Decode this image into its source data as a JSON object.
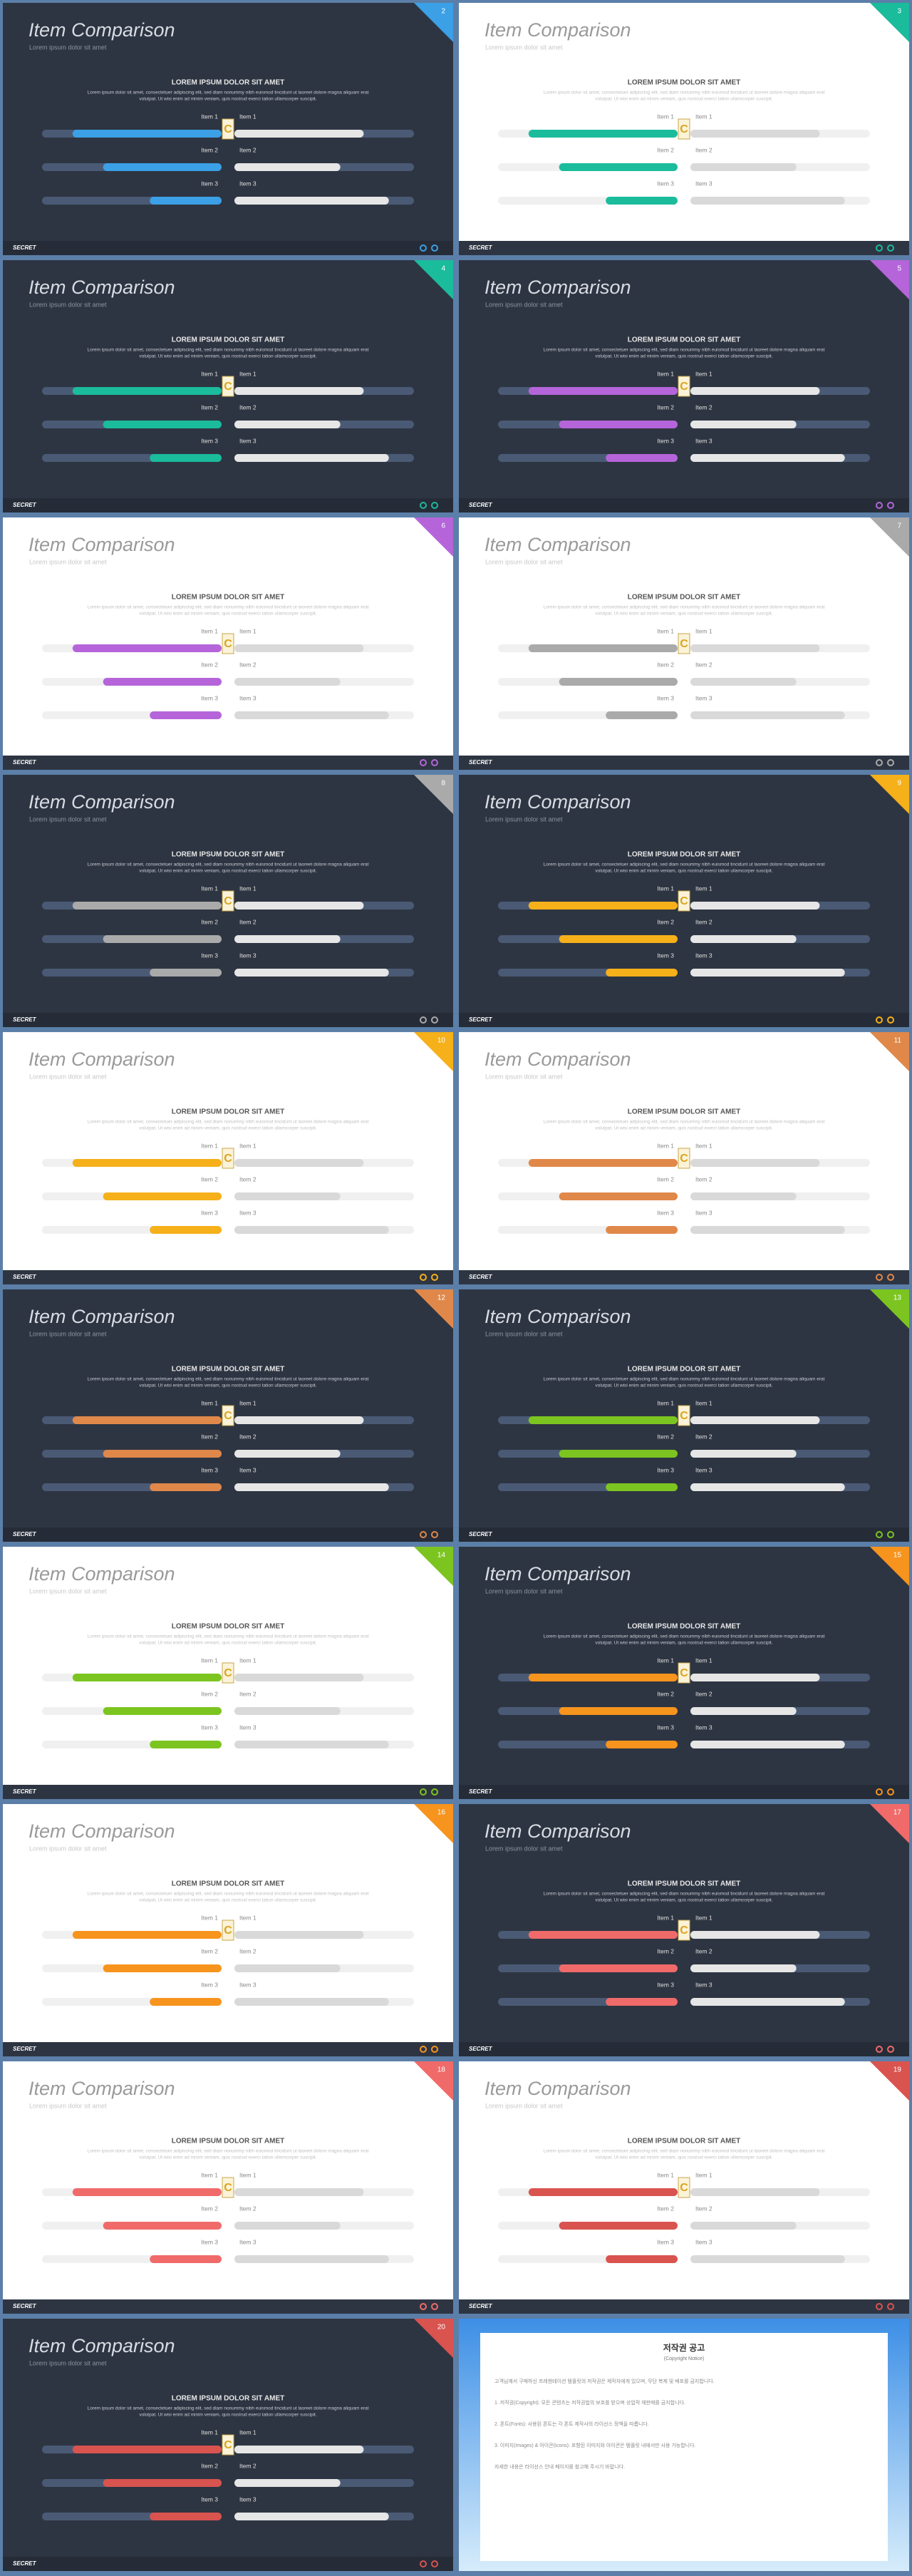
{
  "slide_template": {
    "title": "Item Comparison",
    "subtitle": "Lorem ipsum dolor sit amet",
    "heading": "LOREM IPSUM DOLOR SIT AMET",
    "body": [
      "Lorem ipsum dolor sit amet, consectetuer adipiscing elit, sed diam nonummy nibh euismod tincidunt ut laoreet dolore magna aliquam erat",
      "volutpat. Ut wisi enim ad minim veniam, quis nostrud exerci tation ullamcorper suscipit."
    ],
    "items": [
      "Item 1",
      "Item 2",
      "Item 3"
    ],
    "left_values": [
      83,
      66,
      40
    ],
    "right_values": [
      72,
      59,
      86
    ],
    "icon": "C",
    "footer": "SECRET"
  },
  "slides": [
    {
      "number": 2,
      "theme": "dark",
      "color": "#3ba0e6"
    },
    {
      "number": 3,
      "theme": "light",
      "color": "#1abc9c"
    },
    {
      "number": 4,
      "theme": "dark",
      "color": "#1abc9c"
    },
    {
      "number": 5,
      "theme": "dark",
      "color": "#b565d9"
    },
    {
      "number": 6,
      "theme": "light",
      "color": "#b565d9"
    },
    {
      "number": 7,
      "theme": "light",
      "color": "#aaaaaa"
    },
    {
      "number": 8,
      "theme": "dark",
      "color": "#aaaaaa"
    },
    {
      "number": 9,
      "theme": "dark",
      "color": "#f5b01a"
    },
    {
      "number": 10,
      "theme": "light",
      "color": "#f5b01a"
    },
    {
      "number": 11,
      "theme": "light",
      "color": "#e0884a"
    },
    {
      "number": 12,
      "theme": "dark",
      "color": "#e0884a"
    },
    {
      "number": 13,
      "theme": "dark",
      "color": "#7cc520"
    },
    {
      "number": 14,
      "theme": "light",
      "color": "#7cc520"
    },
    {
      "number": 15,
      "theme": "dark",
      "color": "#f7941d"
    },
    {
      "number": 16,
      "theme": "light",
      "color": "#f7941d"
    },
    {
      "number": 17,
      "theme": "dark",
      "color": "#f06a6a"
    },
    {
      "number": 18,
      "theme": "light",
      "color": "#f06a6a"
    },
    {
      "number": 19,
      "theme": "light",
      "color": "#d9534f"
    },
    {
      "number": 20,
      "theme": "dark",
      "color": "#d9534f"
    }
  ],
  "notice": {
    "title": "저작권 공고",
    "subtitle": "(Copyright Notice)",
    "paragraphs": [
      "고객님께서 구매하신 프레젠테이션 템플릿의 저작권은 제작자에게 있으며, 무단 복제 및 배포를 금지합니다.",
      "1. 저작권(Copyright): 모든 콘텐츠는 저작권법의 보호를 받으며 상업적 재판매를 금지합니다.",
      "2. 폰트(Fonts): 사용된 폰트는 각 폰트 제작사의 라이선스 정책을 따릅니다.",
      "3. 이미지(Images) & 아이콘(Icons): 포함된 이미지와 아이콘은 템플릿 내에서만 사용 가능합니다.",
      "자세한 내용은 라이선스 안내 페이지를 참고해 주시기 바랍니다."
    ]
  }
}
